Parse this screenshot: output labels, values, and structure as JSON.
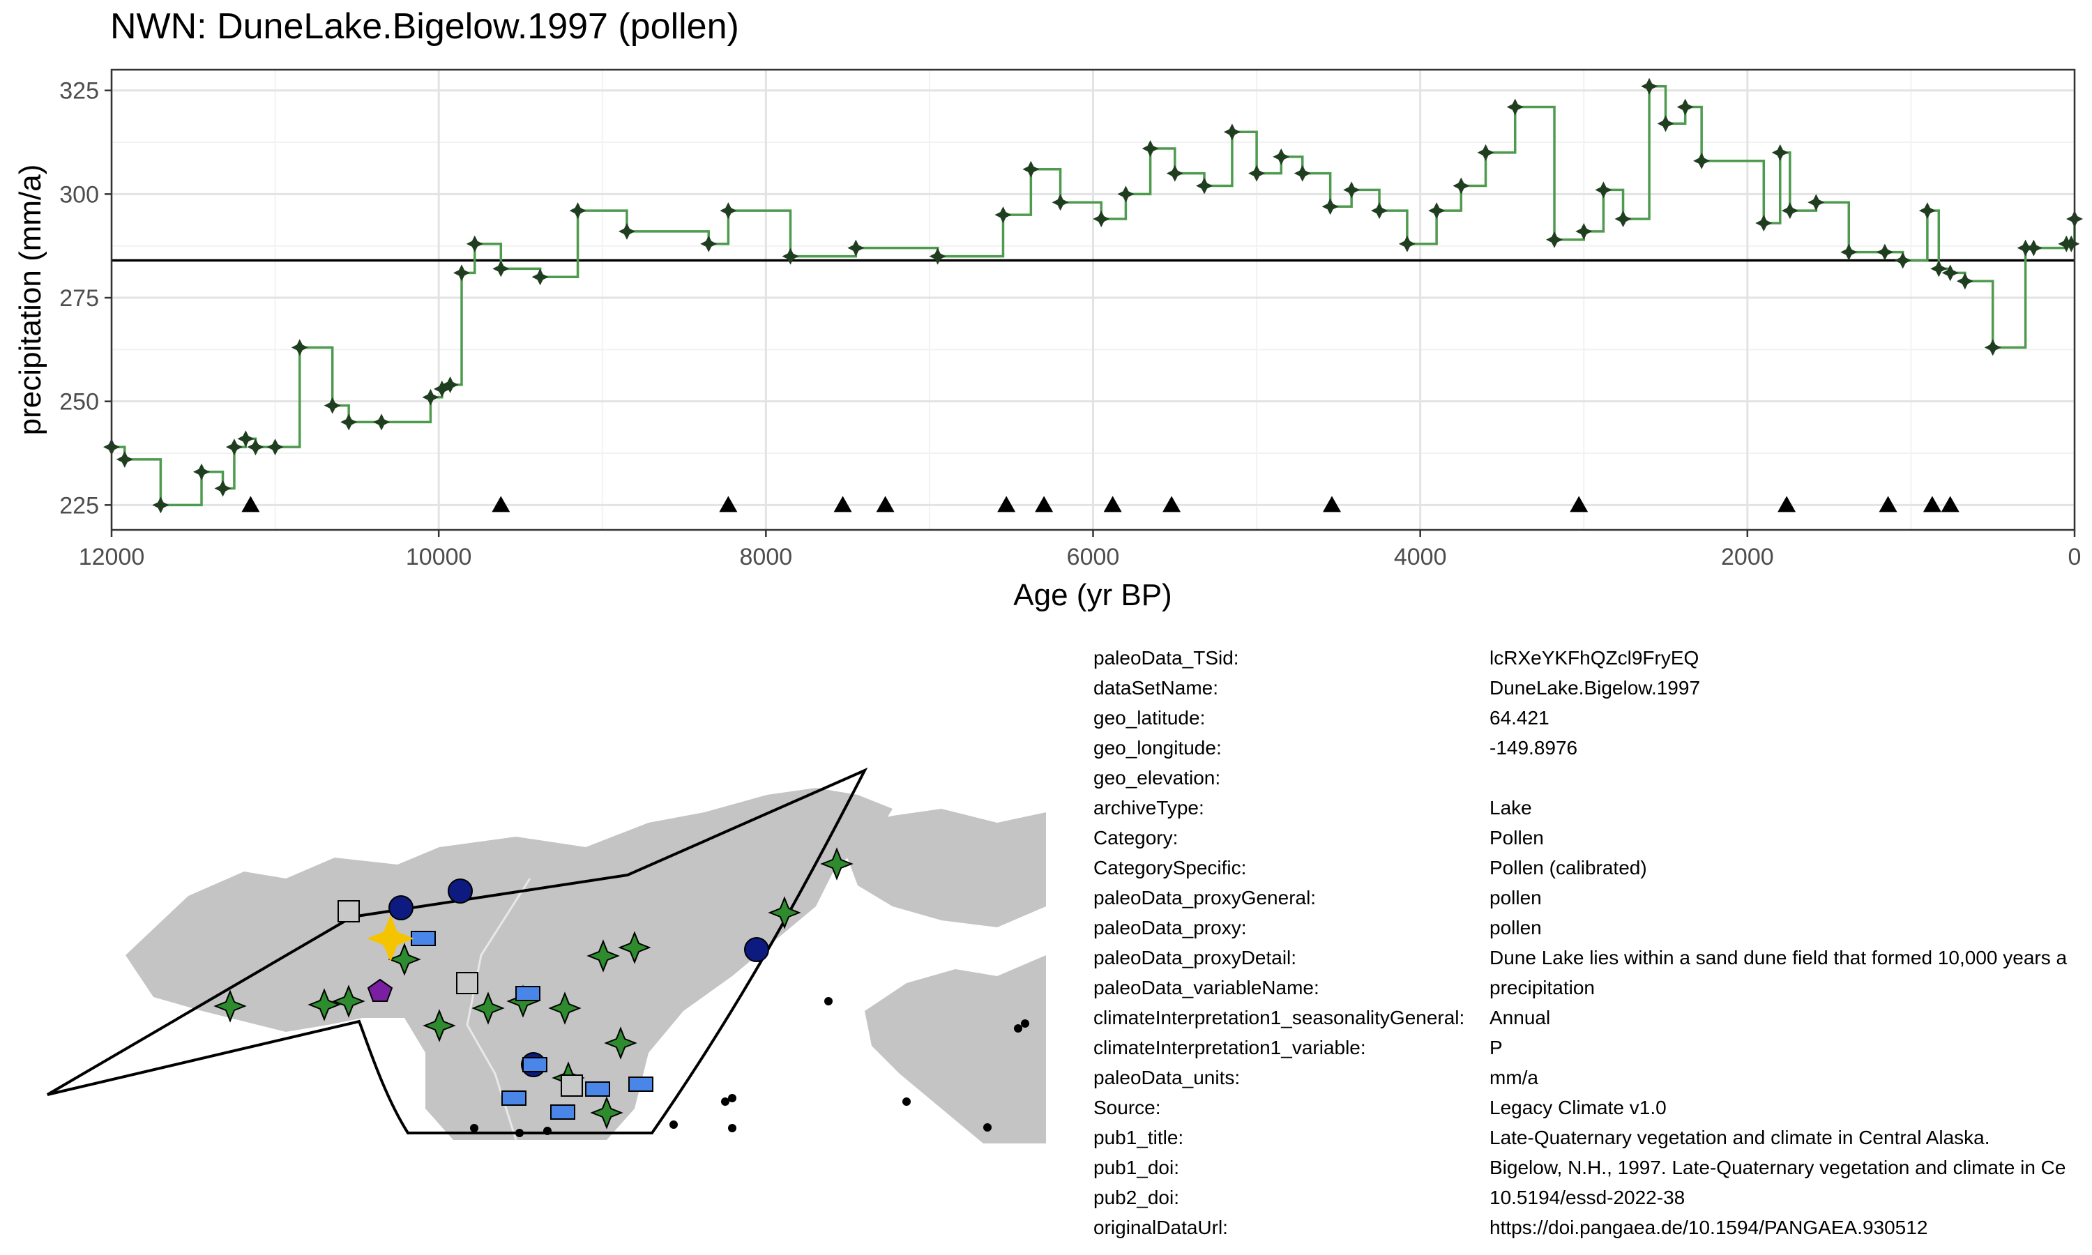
{
  "chart_data": {
    "type": "line",
    "title": "NWN: DuneLake.Bigelow.1997 (pollen)",
    "xlabel": "Age (yr BP)",
    "ylabel": "precipitation (mm/a)",
    "xlim": [
      12000,
      0
    ],
    "ylim": [
      219,
      330
    ],
    "x_ticks": [
      12000,
      10000,
      8000,
      6000,
      4000,
      2000,
      0
    ],
    "y_ticks": [
      225,
      250,
      275,
      300,
      325
    ],
    "grid": true,
    "legend": "none",
    "line_color": "#4e9a4e",
    "point_color": "#1f3d1f",
    "reference_line": 284,
    "series": [
      {
        "x": [
          12000,
          11920,
          11700,
          11450,
          11320,
          11250,
          11180,
          11120,
          11000,
          10850,
          10650,
          10550,
          10350,
          10050,
          9980,
          9930,
          9860,
          9780,
          9620,
          9380,
          9150,
          8850,
          8350,
          8230,
          7850,
          7450,
          6950,
          6550,
          6380,
          6200,
          5950,
          5800,
          5650,
          5500,
          5320,
          5150,
          5000,
          4850,
          4720,
          4550,
          4420,
          4250,
          4080,
          3900,
          3750,
          3600,
          3420,
          3180,
          3000,
          2880,
          2760,
          2600,
          2500,
          2380,
          2280,
          1900,
          1800,
          1740,
          1580,
          1380,
          1160,
          1050,
          900,
          830,
          760,
          670,
          500,
          300,
          250,
          50,
          20,
          0
        ],
        "y": [
          239,
          236,
          225,
          233,
          229,
          239,
          241,
          239,
          239,
          263,
          249,
          245,
          245,
          251,
          253,
          254,
          281,
          288,
          282,
          280,
          296,
          291,
          288,
          296,
          285,
          287,
          285,
          295,
          306,
          298,
          294,
          300,
          311,
          305,
          302,
          315,
          305,
          309,
          305,
          297,
          301,
          296,
          288,
          296,
          302,
          310,
          321,
          289,
          291,
          301,
          294,
          326,
          317,
          321,
          308,
          293,
          310,
          296,
          298,
          286,
          286,
          284,
          296,
          282,
          281,
          279,
          263,
          287,
          287,
          288,
          288,
          294
        ]
      }
    ],
    "age_markers": [
      11150,
      9620,
      8230,
      7530,
      7270,
      6530,
      6300,
      5880,
      5520,
      4540,
      3030,
      1760,
      1140,
      870,
      760
    ],
    "age_marker_y": 225
  },
  "metadata": [
    {
      "key": "paleoData_TSid:",
      "value": "lcRXeYKFhQZcl9FryEQ"
    },
    {
      "key": "dataSetName:",
      "value": "DuneLake.Bigelow.1997"
    },
    {
      "key": "geo_latitude:",
      "value": "64.421"
    },
    {
      "key": "geo_longitude:",
      "value": "-149.8976"
    },
    {
      "key": "geo_elevation:",
      "value": ""
    },
    {
      "key": "archiveType:",
      "value": "Lake"
    },
    {
      "key": "Category:",
      "value": "Pollen"
    },
    {
      "key": "CategorySpecific:",
      "value": "Pollen (calibrated)"
    },
    {
      "key": "paleoData_proxyGeneral:",
      "value": "pollen"
    },
    {
      "key": "paleoData_proxy:",
      "value": "pollen"
    },
    {
      "key": "paleoData_proxyDetail:",
      "value": "Dune Lake lies within a sand dune field that formed 10,000 years a"
    },
    {
      "key": "paleoData_variableName:",
      "value": "precipitation"
    },
    {
      "key": "climateInterpretation1_seasonalityGeneral:",
      "value": "Annual"
    },
    {
      "key": "climateInterpretation1_variable:",
      "value": "P"
    },
    {
      "key": "paleoData_units:",
      "value": "mm/a"
    },
    {
      "key": "Source:",
      "value": "Legacy Climate v1.0"
    },
    {
      "key": "pub1_title:",
      "value": "Late-Quaternary vegetation and climate in Central Alaska."
    },
    {
      "key": "pub1_doi:",
      "value": "Bigelow, N.H., 1997. Late-Quaternary vegetation and climate in Ce"
    },
    {
      "key": "pub2_doi:",
      "value": "10.5194/essd-2022-38"
    },
    {
      "key": "originalDataUrl:",
      "value": "https://doi.pangaea.de/10.1594/PANGAEA.930512"
    }
  ],
  "map": {
    "land_color": "#c4c4c4",
    "region_outline_color": "#000000",
    "highlight_color": "#f5c400",
    "symbols": [
      {
        "shape": "star",
        "color": "#2e8b2e"
      },
      {
        "shape": "circle",
        "color": "#0d1a80"
      },
      {
        "shape": "square",
        "color": "#c8c8c8"
      },
      {
        "shape": "rect",
        "color": "#4a86e8"
      },
      {
        "shape": "pentagon",
        "color": "#7a1fa2"
      },
      {
        "shape": "dot",
        "color": "#000000"
      }
    ]
  }
}
